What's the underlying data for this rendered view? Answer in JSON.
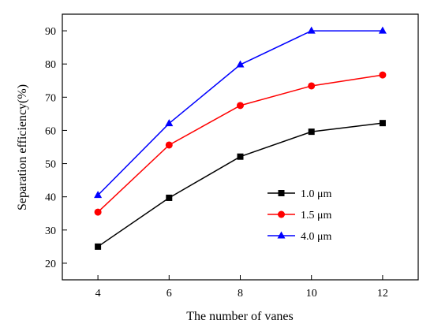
{
  "chart_data": {
    "type": "line",
    "x": [
      4,
      6,
      8,
      10,
      12
    ],
    "series": [
      {
        "name": "1.0 μm",
        "values": [
          25.0,
          39.7,
          52.1,
          59.6,
          62.2
        ],
        "color": "#000000",
        "marker": "square"
      },
      {
        "name": "1.5 μm",
        "values": [
          35.4,
          55.6,
          67.5,
          73.4,
          76.7
        ],
        "color": "#ff0000",
        "marker": "circle"
      },
      {
        "name": "4.0 μm",
        "values": [
          40.5,
          62.1,
          79.8,
          90.0,
          90.0
        ],
        "color": "#0000ff",
        "marker": "triangle"
      }
    ],
    "xlabel": "The number of vanes",
    "ylabel": "Separation efficiency(%)",
    "xlim": [
      3,
      13
    ],
    "ylim": [
      15,
      95
    ],
    "xticks": [
      4,
      6,
      8,
      10,
      12
    ],
    "yticks": [
      20,
      30,
      40,
      50,
      60,
      70,
      80,
      90
    ],
    "grid": false,
    "legend_position": "lower-right"
  }
}
